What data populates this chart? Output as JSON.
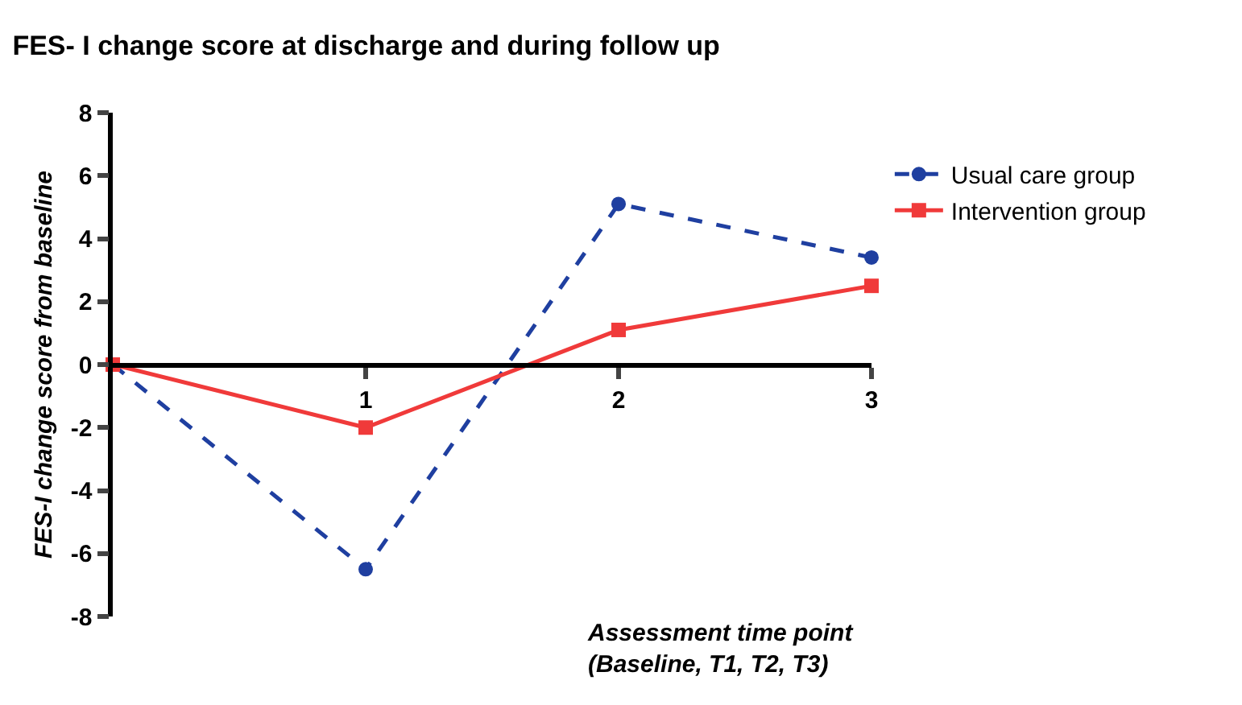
{
  "chart_data": {
    "type": "line",
    "title": "FES- I change score at discharge and during follow up",
    "xlabel": "Assessment time point\n(Baseline, T1, T2, T3)",
    "ylabel": "FES-I change score from baseline",
    "x": [
      0,
      1,
      2,
      3
    ],
    "xlim": [
      0,
      3
    ],
    "xticks": [
      1,
      2,
      3
    ],
    "ylim": [
      -8,
      8
    ],
    "yticks": [
      -8,
      -6,
      -4,
      -2,
      0,
      2,
      4,
      6,
      8
    ],
    "legend": "right",
    "series": [
      {
        "name": "Usual care group",
        "color": "#1f3fa0",
        "values": [
          0,
          -6.5,
          5.1,
          3.4
        ],
        "marker": "circle",
        "line_style": "dashed"
      },
      {
        "name": "Intervention group",
        "color": "#f03a3a",
        "values": [
          0,
          -2,
          1.1,
          2.5
        ],
        "marker": "square",
        "line_style": "solid"
      }
    ]
  }
}
